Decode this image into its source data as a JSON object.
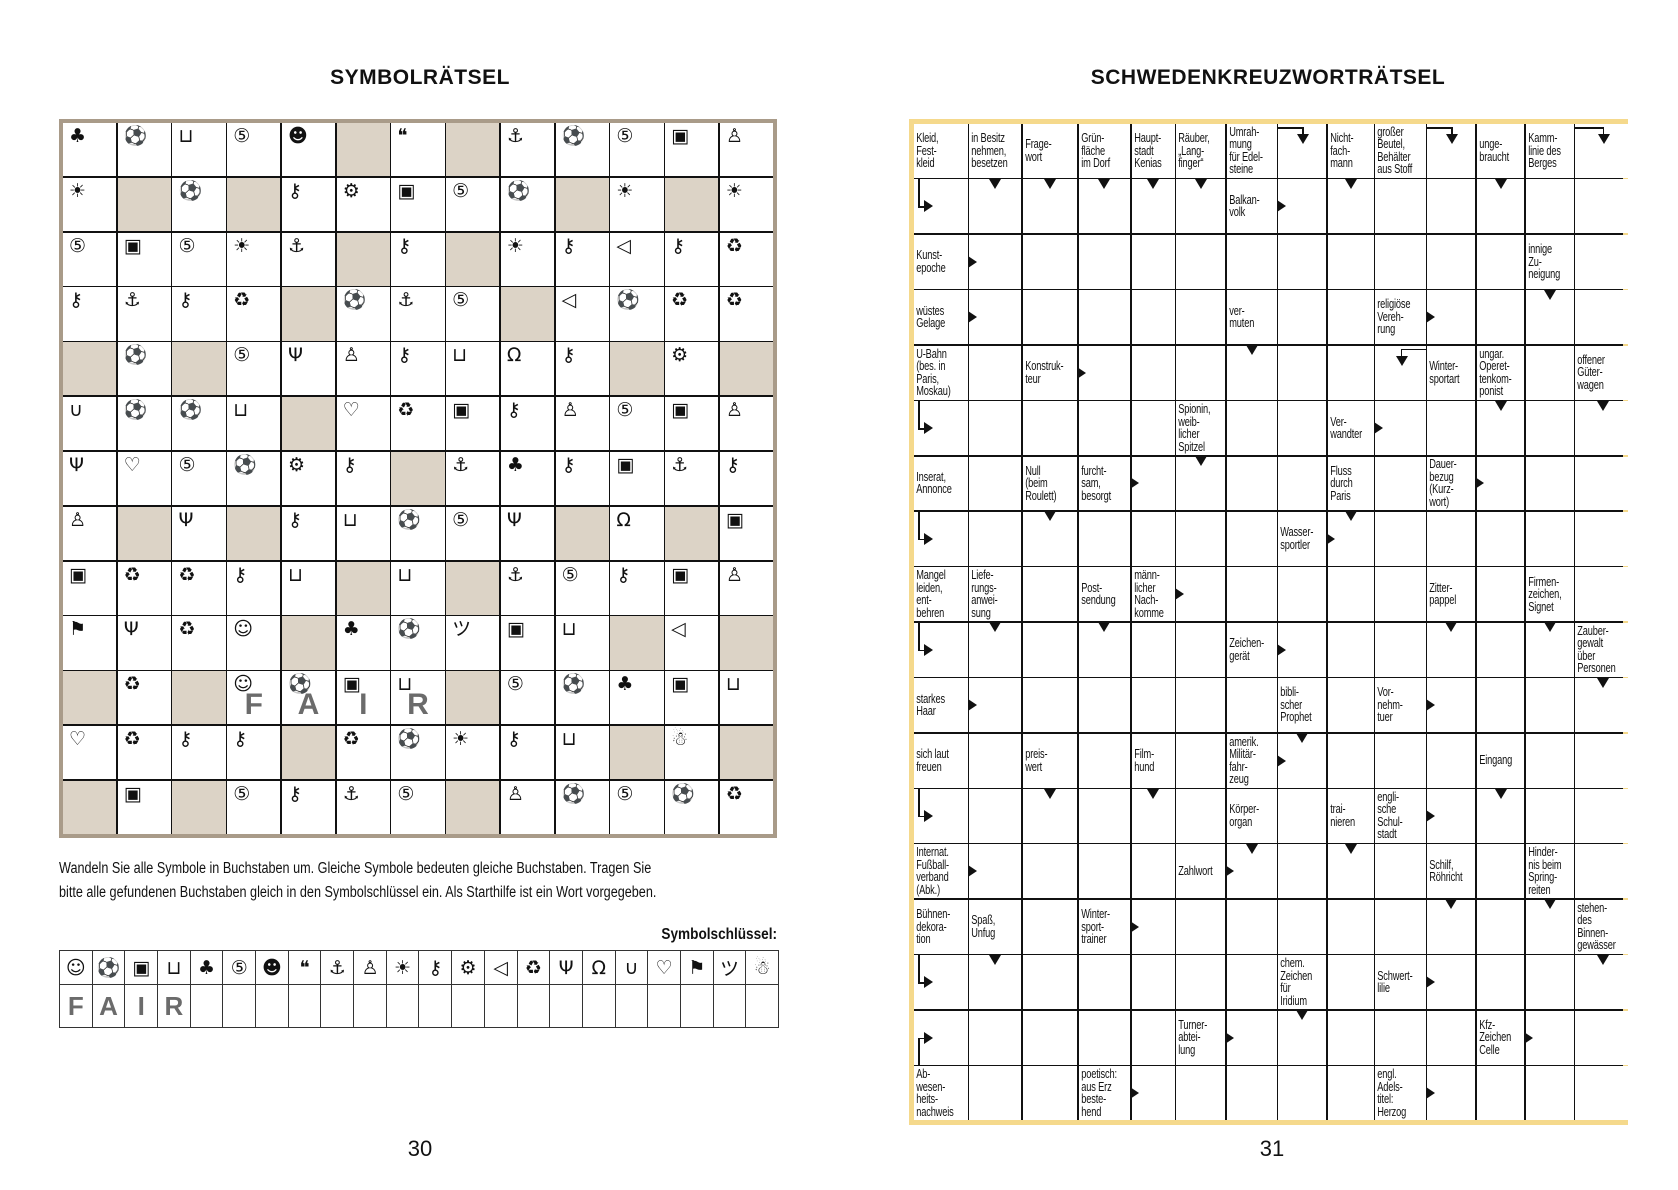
{
  "left_page": {
    "title": "SYMBOLRÄTSEL",
    "page_number": "30",
    "instructions": {
      "line1": "Wandeln Sie alle Symbole in Buchstaben um. Gleiche Symbole bedeuten gleiche Buchstaben. Tragen Sie",
      "line2": "bitte alle gefundenen Buchstaben gleich in den Symbolschlüssel ein. Als Starthilfe ist ein Wort vorgegeben."
    },
    "colors": {
      "blocked": "#dcd3c6",
      "frame": "#a99b89",
      "given_letters": "#6b6b6b"
    }
  },
  "symbols": {
    "GR": {
      "name": "grinning-face",
      "glyph": "☺"
    },
    "BA": {
      "name": "soccer-ball",
      "glyph": "⚽"
    },
    "MO": {
      "name": "monitor-play",
      "glyph": "▣"
    },
    "CA": {
      "name": "shopping-cart",
      "glyph": "⊔"
    },
    "TR": {
      "name": "tree",
      "glyph": "♣"
    },
    "FI": {
      "name": "circled-five",
      "glyph": "⑤"
    },
    "SG": {
      "name": "sunglasses-face",
      "glyph": "☻"
    },
    "SP": {
      "name": "speech-bubble",
      "glyph": "❝"
    },
    "SH": {
      "name": "ship",
      "glyph": "⚓"
    },
    "ST": {
      "name": "stick-figure",
      "glyph": "♙"
    },
    "SU": {
      "name": "sun-cloud",
      "glyph": "☀"
    },
    "LO": {
      "name": "padlock",
      "glyph": "⚷"
    },
    "GE": {
      "name": "gear",
      "glyph": "⚙"
    },
    "ME": {
      "name": "megaphone",
      "glyph": "◁"
    },
    "RE": {
      "name": "recycle",
      "glyph": "♻"
    },
    "WG": {
      "name": "wine-glasses",
      "glyph": "Ψ"
    },
    "GH": {
      "name": "ghost",
      "glyph": "Ω"
    },
    "HO": {
      "name": "horseshoe",
      "glyph": "∪"
    },
    "HE": {
      "name": "heart-eyes-face",
      "glyph": "♡"
    },
    "BO": {
      "name": "boot",
      "glyph": "⚑"
    },
    "LA": {
      "name": "laughing-face",
      "glyph": "ツ"
    },
    "SN": {
      "name": "snowman",
      "glyph": "☃"
    }
  },
  "symbol_puzzle": {
    "rows": [
      [
        "TR",
        "BA",
        "CA",
        "FI",
        "SG",
        "#",
        "SP",
        "#",
        "SH",
        "BA",
        "FI",
        "MO",
        "ST"
      ],
      [
        "SU",
        "#",
        "BA",
        "#",
        "LO",
        "GE",
        "MO",
        "FI",
        "BA",
        "#",
        "SU",
        "#",
        "SU"
      ],
      [
        "FI",
        "MO",
        "FI",
        "SU",
        "SH",
        "#",
        "LO",
        "#",
        "SU",
        "LO",
        "ME",
        "LO",
        "RE"
      ],
      [
        "LO",
        "SH",
        "LO",
        "RE",
        "#",
        "BA",
        "SH",
        "FI",
        "#",
        "ME",
        "BA",
        "RE",
        "RE"
      ],
      [
        "#",
        "BA",
        "#",
        "FI",
        "WG",
        "ST",
        "LO",
        "CA",
        "GH",
        "LO",
        "#",
        "GE",
        "#"
      ],
      [
        "HO",
        "BA",
        "BA",
        "CA",
        "#",
        "HE",
        "RE",
        "MO",
        "LO",
        "ST",
        "FI",
        "MO",
        "ST"
      ],
      [
        "WG",
        "HE",
        "FI",
        "BA",
        "GE",
        "LO",
        "#",
        "SH",
        "TR",
        "LO",
        "MO",
        "SH",
        "LO"
      ],
      [
        "ST",
        "#",
        "WG",
        "#",
        "LO",
        "CA",
        "BA",
        "FI",
        "WG",
        "#",
        "GH",
        "#",
        "MO"
      ],
      [
        "MO",
        "RE",
        "RE",
        "LO",
        "CA",
        "#",
        "CA",
        "#",
        "SH",
        "FI",
        "LO",
        "MO",
        "ST"
      ],
      [
        "BO",
        "WG",
        "RE",
        "GR",
        "#",
        "TR",
        "BA",
        "LA",
        "MO",
        "CA",
        "#",
        "ME",
        "#"
      ],
      [
        "#",
        "RE",
        "#",
        "GR",
        "BA",
        "MO",
        "CA",
        "#",
        "FI",
        "BA",
        "TR",
        "MO",
        "CA"
      ],
      [
        "HE",
        "RE",
        "LO",
        "LO",
        "#",
        "RE",
        "BA",
        "SU",
        "LO",
        "CA",
        "#",
        "SN",
        "#"
      ],
      [
        "#",
        "MO",
        "#",
        "FI",
        "LO",
        "SH",
        "FI",
        "#",
        "ST",
        "BA",
        "FI",
        "BA",
        "RE"
      ]
    ],
    "given_word": {
      "text": "FAIR",
      "row": 10,
      "col": 3
    }
  },
  "key": {
    "label": "Symbolschlüssel:",
    "symbols": [
      "GR",
      "BA",
      "MO",
      "CA",
      "TR",
      "FI",
      "SG",
      "SP",
      "SH",
      "ST",
      "SU",
      "LO",
      "GE",
      "ME",
      "RE",
      "WG",
      "GH",
      "HO",
      "HE",
      "BO",
      "LA",
      "SN"
    ],
    "letters": [
      "F",
      "A",
      "I",
      "R",
      "",
      "",
      "",
      "",
      "",
      "",
      "",
      "",
      "",
      "",
      "",
      "",
      "",
      "",
      "",
      "",
      "",
      ""
    ]
  },
  "right_page": {
    "title": "SCHWEDENKREUZWORTRÄTSEL",
    "page_number": "31",
    "colors": {
      "frame": "#f5d98c"
    }
  },
  "crossword": {
    "rows": [
      [
        {
          "t": "Kleid,\nFest-\nkleid"
        },
        {
          "t": "in Besitz\nnehmen,\nbesetzen",
          "a": "d"
        },
        {
          "t": "Frage-\nwort",
          "a": "d"
        },
        {
          "t": "Grün-\nfläche\nim Dorf",
          "a": "d"
        },
        {
          "t": "Haupt-\nstadt\nKenias",
          "a": "d"
        },
        {
          "t": "Räuber,\n„Lang-\nfinger“",
          "a": "d"
        },
        {
          "t": "Umrah-\nmung\nfür Edel-\nsteine"
        },
        {
          "turn": "right-down"
        },
        {
          "t": "Nicht-\nfach-\nmann",
          "a": "d"
        },
        {
          "t": "großer\nBeutel,\nBehälter\naus Stoff"
        },
        {
          "turn": "right-down"
        },
        {
          "t": "unge-\nbraucht",
          "a": "d"
        },
        {
          "t": "Kamm-\nlinie des\nBerges"
        },
        {
          "turn": "right-down"
        }
      ],
      [
        {
          "turn": "down-right"
        },
        "",
        "",
        "",
        "",
        "",
        {
          "t": "Balkan-\nvolk",
          "a": "r"
        },
        "",
        "",
        "",
        "",
        "",
        "",
        ""
      ],
      [
        {
          "t": "Kunst-\nepoche",
          "a": "r"
        },
        "",
        "",
        "",
        "",
        "",
        "",
        "",
        "",
        "",
        "",
        "",
        {
          "t": "innige\nZu-\nneigung",
          "a": "d"
        },
        ""
      ],
      [
        {
          "t": "wüstes\nGelage",
          "a": "r"
        },
        "",
        "",
        "",
        "",
        "",
        {
          "t": "ver-\nmuten",
          "a": "d"
        },
        "",
        "",
        {
          "t": "religiöse\nVereh-\nrung",
          "a": "r"
        },
        "",
        "",
        "",
        ""
      ],
      [
        {
          "t": "U-Bahn\n(bes. in\nParis,\nMoskau)"
        },
        "",
        {
          "t": "Konstruk-\nteur",
          "a": "r"
        },
        "",
        "",
        "",
        "",
        "",
        "",
        {
          "turn": "left-down"
        },
        {
          "t": "Winter-\nsportart"
        },
        {
          "t": "ungar.\nOperet-\ntenkom-\nponist",
          "a": "d"
        },
        "",
        {
          "t": "offener\nGüter-\nwagen",
          "a": "d"
        }
      ],
      [
        {
          "turn": "down-right"
        },
        "",
        "",
        "",
        "",
        {
          "t": "Spionin,\nweib-\nlicher\nSpitzel",
          "a": "d"
        },
        "",
        "",
        {
          "t": "Ver-\nwandter",
          "a": "r"
        },
        "",
        "",
        "",
        "",
        ""
      ],
      [
        {
          "t": "Inserat,\nAnnonce"
        },
        "",
        {
          "t": "Null\n(beim\nRoulett)",
          "a": "d"
        },
        {
          "t": "furcht-\nsam,\nbesorgt",
          "a": "r"
        },
        "",
        "",
        "",
        "",
        {
          "t": "Fluss\ndurch\nParis",
          "a": "d"
        },
        "",
        {
          "t": "Dauer-\nbezug\n(Kurz-\nwort)",
          "a": "r"
        },
        "",
        "",
        ""
      ],
      [
        {
          "turn": "down-right"
        },
        "",
        "",
        "",
        "",
        "",
        "",
        {
          "t": "Wasser-\nsportler",
          "a": "r"
        },
        "",
        "",
        "",
        "",
        "",
        ""
      ],
      [
        {
          "t": "Mangel\nleiden,\nent-\nbehren"
        },
        {
          "t": "Liefe-\nrungs-\nanwei-\nsung",
          "a": "d"
        },
        "",
        {
          "t": "Post-\nsendung",
          "a": "d"
        },
        {
          "t": "männ-\nlicher\nNach-\nkomme",
          "a": "r"
        },
        "",
        "",
        "",
        "",
        "",
        {
          "t": "Zitter-\npappel",
          "a": "d"
        },
        "",
        {
          "t": "Firmen-\nzeichen,\nSignet",
          "a": "d"
        },
        ""
      ],
      [
        {
          "turn": "down-right"
        },
        "",
        "",
        "",
        "",
        "",
        {
          "t": "Zeichen-\ngerät",
          "a": "r"
        },
        "",
        "",
        "",
        "",
        "",
        "",
        {
          "t": "Zauber-\ngewalt\nüber\nPersonen",
          "a": "d"
        }
      ],
      [
        {
          "t": "starkes\nHaar",
          "a": "r"
        },
        "",
        "",
        "",
        "",
        "",
        "",
        {
          "t": "bibli-\nscher\nProphet",
          "a": "d"
        },
        "",
        {
          "t": "Vor-\nnehm-\ntuer",
          "a": "r"
        },
        "",
        "",
        "",
        ""
      ],
      [
        {
          "t": "sich laut\nfreuen"
        },
        "",
        {
          "t": "preis-\nwert",
          "a": "d"
        },
        "",
        {
          "t": "Film-\nhund",
          "a": "d"
        },
        "",
        {
          "t": "amerik.\nMilitär-\nfahr-\nzeug",
          "a": "r"
        },
        "",
        "",
        "",
        "",
        {
          "t": "Eingang",
          "a": "d"
        },
        "",
        ""
      ],
      [
        {
          "turn": "down-right"
        },
        "",
        "",
        "",
        "",
        "",
        {
          "t": "Körper-\norgan",
          "a": "d"
        },
        "",
        {
          "t": "trai-\nnieren",
          "a": "d"
        },
        {
          "t": "engli-\nsche\nSchul-\nstadt",
          "a": "r"
        },
        "",
        "",
        "",
        ""
      ],
      [
        {
          "t": "Internat.\nFußball-\nverband\n(Abk.)",
          "a": "r"
        },
        "",
        "",
        "",
        "",
        {
          "t": "Zahlwort",
          "a": "r"
        },
        "",
        "",
        "",
        "",
        {
          "t": "Schilf,\nRöhricht",
          "a": "d"
        },
        "",
        {
          "t": "Hinder-\nnis beim\nSpring-\nreiten",
          "a": "d"
        },
        ""
      ],
      [
        {
          "t": "Bühnen-\ndekora-\ntion"
        },
        {
          "t": "Spaß,\nUnfug",
          "a": "d"
        },
        "",
        {
          "t": "Winter-\nsport-\ntrainer",
          "a": "r"
        },
        "",
        "",
        "",
        "",
        "",
        "",
        "",
        "",
        "",
        {
          "t": "stehen-\ndes\nBinnen-\ngewässer",
          "a": "d"
        }
      ],
      [
        {
          "turn": "down-right"
        },
        "",
        "",
        "",
        "",
        "",
        "",
        {
          "t": "chem.\nZeichen\nfür\nIridium",
          "a": "d"
        },
        "",
        {
          "t": "Schwert-\nlilie",
          "a": "r"
        },
        "",
        "",
        "",
        ""
      ],
      [
        {
          "turn": "up-right"
        },
        "",
        "",
        "",
        "",
        {
          "t": "Turner-\nabtei-\nlung",
          "a": "r"
        },
        "",
        "",
        "",
        "",
        "",
        {
          "t": "Kfz-\nZeichen\nCelle",
          "a": "r"
        },
        "",
        ""
      ],
      [
        {
          "t": "Ab-\nwesen-\nheits-\nnachweis"
        },
        "",
        "",
        {
          "t": "poetisch:\naus Erz\nbeste-\nhend",
          "a": "r"
        },
        "",
        "",
        "",
        "",
        "",
        {
          "t": "engl.\nAdels-\ntitel:\nHerzog",
          "a": "r"
        },
        "",
        "",
        "",
        ""
      ]
    ]
  }
}
